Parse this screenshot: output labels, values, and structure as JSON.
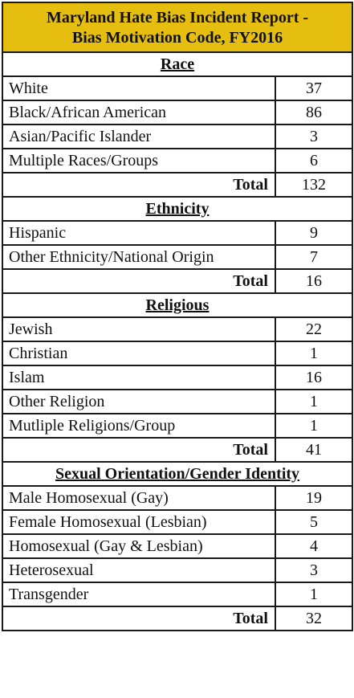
{
  "title_line1": "Maryland Hate Bias Incident Report -",
  "title_line2": "Bias Motivation Code, FY2016",
  "total_label": "Total",
  "colors": {
    "header_bg": "#e6be0f",
    "border": "#1a1a1a"
  },
  "chart_data": {
    "type": "table",
    "title": "Maryland Hate Bias Incident Report - Bias Motivation Code, FY2016",
    "sections": [
      {
        "name": "Race",
        "rows": [
          {
            "label": "White",
            "value": 37
          },
          {
            "label": "Black/African American",
            "value": 86
          },
          {
            "label": "Asian/Pacific Islander",
            "value": 3
          },
          {
            "label": "Multiple Races/Groups",
            "value": 6
          }
        ],
        "total": 132
      },
      {
        "name": "Ethnicity",
        "rows": [
          {
            "label": "Hispanic",
            "value": 9
          },
          {
            "label": "Other Ethnicity/National Origin",
            "value": 7
          }
        ],
        "total": 16
      },
      {
        "name": "Religious",
        "rows": [
          {
            "label": "Jewish",
            "value": 22
          },
          {
            "label": "Christian",
            "value": 1
          },
          {
            "label": "Islam",
            "value": 16
          },
          {
            "label": "Other Religion",
            "value": 1
          },
          {
            "label": "Mutliple Religions/Group",
            "value": 1
          }
        ],
        "total": 41
      },
      {
        "name": "Sexual Orientation/Gender Identity",
        "rows": [
          {
            "label": "Male Homosexual (Gay)",
            "value": 19
          },
          {
            "label": "Female Homosexual (Lesbian)",
            "value": 5
          },
          {
            "label": "Homosexual (Gay & Lesbian)",
            "value": 4
          },
          {
            "label": "Heterosexual",
            "value": 3
          },
          {
            "label": "Transgender",
            "value": 1
          }
        ],
        "total": 32
      }
    ]
  }
}
